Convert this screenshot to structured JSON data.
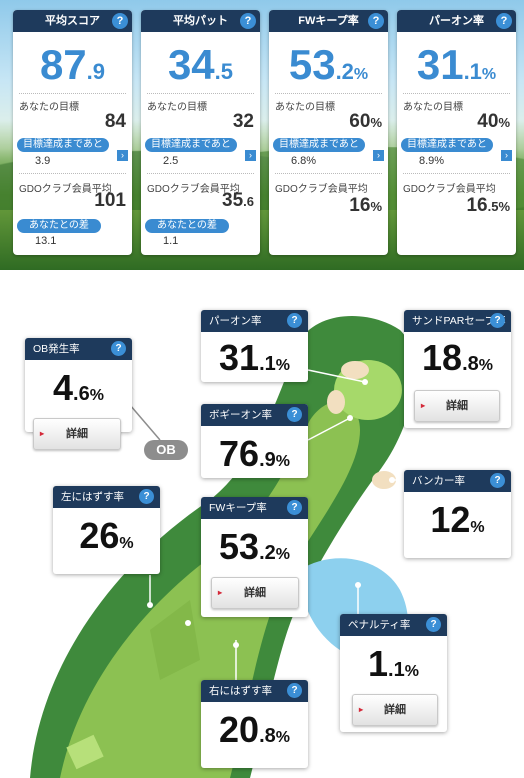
{
  "summary": [
    {
      "title": "平均スコア",
      "int": "87",
      "dec": ".9",
      "unit": "",
      "target_label": "あなたの目標",
      "target_int": "84",
      "target_dec": "",
      "target_unit": "",
      "gap_label": "目標達成まであと",
      "gap_value": "3.9",
      "avg_label": "GDOクラブ会員平均",
      "avg_int": "101",
      "avg_dec": "",
      "avg_unit": "",
      "diff_label": "あなたとの差",
      "diff_value": "13.1"
    },
    {
      "title": "平均パット",
      "int": "34",
      "dec": ".5",
      "unit": "",
      "target_label": "あなたの目標",
      "target_int": "32",
      "target_dec": "",
      "target_unit": "",
      "gap_label": "目標達成まであと",
      "gap_value": "2.5",
      "avg_label": "GDOクラブ会員平均",
      "avg_int": "35",
      "avg_dec": ".6",
      "avg_unit": "",
      "diff_label": "あなたとの差",
      "diff_value": "1.1"
    },
    {
      "title": "FWキープ率",
      "int": "53",
      "dec": ".2",
      "unit": "%",
      "target_label": "あなたの目標",
      "target_int": "60",
      "target_dec": "",
      "target_unit": "%",
      "gap_label": "目標達成まであと",
      "gap_value": "6.8%",
      "avg_label": "GDOクラブ会員平均",
      "avg_int": "16",
      "avg_dec": "",
      "avg_unit": "%",
      "diff_label": "",
      "diff_value": ""
    },
    {
      "title": "パーオン率",
      "int": "31",
      "dec": ".1",
      "unit": "%",
      "target_label": "あなたの目標",
      "target_int": "40",
      "target_dec": "",
      "target_unit": "%",
      "gap_label": "目標達成まであと",
      "gap_value": "8.9%",
      "avg_label": "GDOクラブ会員平均",
      "avg_int": "16",
      "avg_dec": ".5",
      "avg_unit": "%",
      "diff_label": "",
      "diff_value": ""
    }
  ],
  "help_glyph": "?",
  "chevron_glyph": "›",
  "detail_label": "詳細",
  "detail_arrow": "▸",
  "ob_tag": "OB",
  "hole": {
    "ob": {
      "title": "OB発生率",
      "int": "4",
      "dec": ".6",
      "unit": "%"
    },
    "left_miss": {
      "title": "左にはずす率",
      "int": "26",
      "dec": "",
      "unit": "%"
    },
    "par_on": {
      "title": "パーオン率",
      "int": "31",
      "dec": ".1",
      "unit": "%"
    },
    "bogey_on": {
      "title": "ボギーオン率",
      "int": "76",
      "dec": ".9",
      "unit": "%"
    },
    "fw_keep": {
      "title": "FWキープ率",
      "int": "53",
      "dec": ".2",
      "unit": "%"
    },
    "right_miss": {
      "title": "右にはずす率",
      "int": "20",
      "dec": ".8",
      "unit": "%"
    },
    "sand_par": {
      "title": "サンドPARセーブ率",
      "int": "18",
      "dec": ".8",
      "unit": "%"
    },
    "bunker": {
      "title": "バンカー率",
      "int": "12",
      "dec": "",
      "unit": "%"
    },
    "penalty": {
      "title": "ペナルティ率",
      "int": "1",
      "dec": ".1",
      "unit": "%"
    }
  },
  "colors": {
    "header": "#1e3a5c",
    "accent": "#3a8bd1",
    "fairway": "#8cc152",
    "rough": "#3f8a3c",
    "water": "#8dd0ee",
    "bunker": "#f2dfc0"
  }
}
